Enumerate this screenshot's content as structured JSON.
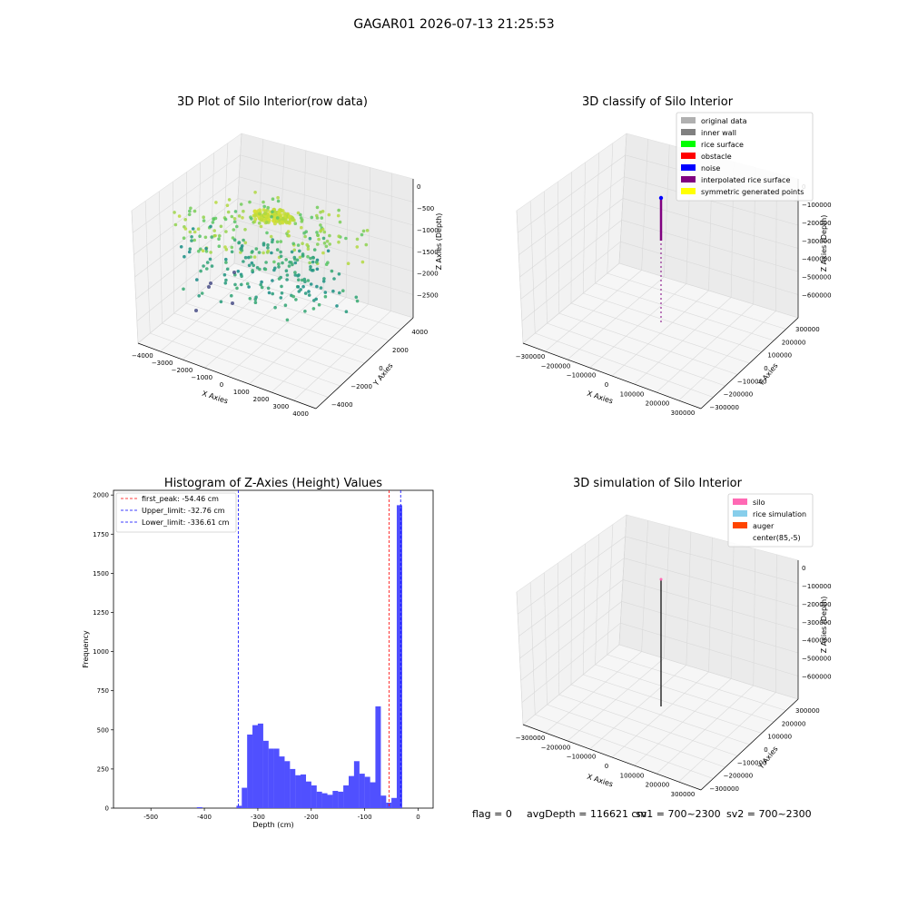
{
  "figure_title": "GAGAR01 2026-07-13 21:25:53",
  "footer": {
    "flag": "flag = 0",
    "avg_depth": "avgDepth = 116621 cm",
    "sv1": "sv1 = 700~2300",
    "sv2": "sv2 = 700~2300"
  },
  "colors": {
    "pane": "#f2f2f2",
    "grid": "#d9d9d9",
    "hist_bar": "#5050ff",
    "first_peak_line": "#ff0000",
    "limit_line": "#0000ff"
  },
  "chart_data": [
    {
      "type": "scatter",
      "projection": "3d",
      "title": "3D Plot of Silo Interior(row data)",
      "xlabel": "X Axies",
      "ylabel": "Y Axies",
      "zlabel": "Z Axies (Depth)",
      "xticks": [
        "−4000",
        "−3000",
        "−2000",
        "−1000",
        "0",
        "1000",
        "2000",
        "3000",
        "4000"
      ],
      "yticks": [
        "−4000",
        "−2000",
        "0",
        "2000",
        "4000"
      ],
      "zticks": [
        "0",
        "−500",
        "−1000",
        "−1500",
        "−2000",
        "−2500"
      ],
      "xlim": [
        -4500,
        4500
      ],
      "ylim": [
        -4500,
        4500
      ],
      "zlim": [
        -2700,
        100
      ],
      "colormap": "viridis (color by depth)",
      "points_note": "roughly 600 points; dense yellow cluster near top center (z≈−200 to −500), green/teal ring points down to z≈−2300"
    },
    {
      "type": "scatter",
      "projection": "3d",
      "title": "3D classify of Silo Interior",
      "xlabel": "X Axies",
      "ylabel": "Y Axies",
      "zlabel": "Z Axies (Depth)",
      "xticks": [
        "−300000",
        "−200000",
        "−100000",
        "0",
        "100000",
        "200000",
        "300000"
      ],
      "yticks": [
        "−300000",
        "−200000",
        "−100000",
        "0",
        "100000",
        "200000",
        "300000"
      ],
      "zticks": [
        "0",
        "−100000",
        "−200000",
        "−300000",
        "−400000",
        "−500000",
        "−600000"
      ],
      "legend_position": "upper right",
      "legend": [
        {
          "label": "original data",
          "color": "#b0b0b0"
        },
        {
          "label": "inner wall",
          "color": "#808080"
        },
        {
          "label": "rice surface",
          "color": "#00ff00"
        },
        {
          "label": "obstacle",
          "color": "#ff0000"
        },
        {
          "label": "noise",
          "color": "#0000ff"
        },
        {
          "label": "interpolated rice surface",
          "color": "#800080"
        },
        {
          "label": "symmetric generated points",
          "color": "#ffff00"
        }
      ]
    },
    {
      "type": "bar",
      "title": "Histogram of Z-Axies (Height) Values",
      "xlabel": "Depth (cm)",
      "ylabel": "Frequency",
      "xlim": [
        -570,
        28
      ],
      "ylim": [
        0,
        2030
      ],
      "xticks": [
        -500,
        -400,
        -300,
        -200,
        -100,
        0
      ],
      "yticks": [
        0,
        250,
        500,
        750,
        1000,
        1250,
        1500,
        1750,
        2000
      ],
      "bin_width": 10.2,
      "bins": [
        {
          "x": -414,
          "h": 6
        },
        {
          "x": -340,
          "h": 15
        },
        {
          "x": -330,
          "h": 130
        },
        {
          "x": -320,
          "h": 470
        },
        {
          "x": -310,
          "h": 530
        },
        {
          "x": -300,
          "h": 540
        },
        {
          "x": -290,
          "h": 430
        },
        {
          "x": -280,
          "h": 380
        },
        {
          "x": -270,
          "h": 380
        },
        {
          "x": -260,
          "h": 330
        },
        {
          "x": -250,
          "h": 300
        },
        {
          "x": -240,
          "h": 250
        },
        {
          "x": -230,
          "h": 210
        },
        {
          "x": -220,
          "h": 215
        },
        {
          "x": -210,
          "h": 170
        },
        {
          "x": -200,
          "h": 145
        },
        {
          "x": -190,
          "h": 105
        },
        {
          "x": -180,
          "h": 95
        },
        {
          "x": -170,
          "h": 85
        },
        {
          "x": -160,
          "h": 110
        },
        {
          "x": -150,
          "h": 105
        },
        {
          "x": -140,
          "h": 145
        },
        {
          "x": -130,
          "h": 205
        },
        {
          "x": -120,
          "h": 300
        },
        {
          "x": -110,
          "h": 220
        },
        {
          "x": -100,
          "h": 200
        },
        {
          "x": -90,
          "h": 165
        },
        {
          "x": -80,
          "h": 650
        },
        {
          "x": -70,
          "h": 80
        },
        {
          "x": -60,
          "h": 35
        },
        {
          "x": -50,
          "h": 65
        },
        {
          "x": -40,
          "h": 1935
        }
      ],
      "vlines": [
        {
          "x": -54.46,
          "color": "#ff0000",
          "label": "first_peak: -54.46 cm"
        },
        {
          "x": -32.76,
          "color": "#0000ff",
          "label": "Upper_limit: -32.76 cm"
        },
        {
          "x": -336.61,
          "color": "#0000ff",
          "label": "Lower_limit: -336.61 cm"
        }
      ],
      "legend_position": "upper left"
    },
    {
      "type": "scatter",
      "projection": "3d",
      "title": "3D simulation of Silo Interior",
      "xlabel": "X Axies",
      "ylabel": "Y Axies",
      "zlabel": "Z Axies (Depth)",
      "xticks": [
        "−300000",
        "−200000",
        "−100000",
        "0",
        "100000",
        "200000",
        "300000"
      ],
      "yticks": [
        "−300000",
        "−200000",
        "−100000",
        "0",
        "100000",
        "200000",
        "300000"
      ],
      "zticks": [
        "0",
        "−100000",
        "−200000",
        "−300000",
        "−400000",
        "−500000",
        "−600000"
      ],
      "legend_position": "upper right",
      "legend": [
        {
          "label": "silo",
          "color": "#ff69b4"
        },
        {
          "label": "rice simulation",
          "color": "#87ceeb"
        },
        {
          "label": "auger",
          "color": "#ff4500"
        },
        {
          "label": "center(85,-5)",
          "color": ""
        }
      ]
    }
  ]
}
